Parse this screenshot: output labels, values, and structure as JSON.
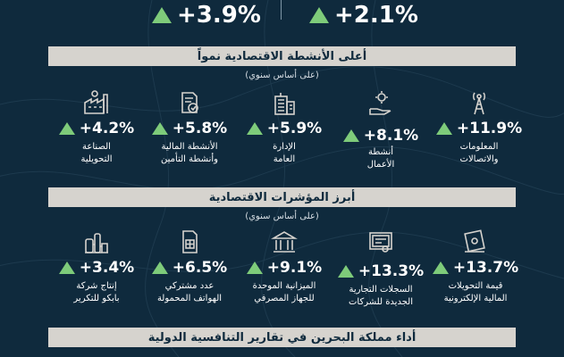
{
  "top_stats": [
    {
      "value": "+2.1%",
      "trend_icon": "up-triangle-icon"
    },
    {
      "value": "+3.9%",
      "trend_icon": "up-triangle-icon"
    }
  ],
  "section1": {
    "title": "أعلى الأنشطة الاقتصادية نمواً",
    "note": "(على أساس سنوي)",
    "items": [
      {
        "value": "+11.9%",
        "label_line1": "المعلومات",
        "label_line2": "والاتصالات",
        "icon": "telecom-tower-icon"
      },
      {
        "value": "+8.1%",
        "label_line1": "أنشطة",
        "label_line2": "الأعمال",
        "icon": "hand-gear-icon"
      },
      {
        "value": "+5.9%",
        "label_line1": "الإدارة",
        "label_line2": "العامة",
        "icon": "government-building-icon"
      },
      {
        "value": "+5.8%",
        "label_line1": "الأنشطة المالية",
        "label_line2": "وأنشطة التأمين",
        "icon": "insurance-document-icon"
      },
      {
        "value": "+4.2%",
        "label_line1": "الصناعة",
        "label_line2": "التحويلية",
        "icon": "factory-icon"
      }
    ]
  },
  "section2": {
    "title": "أبرز المؤشرات الاقتصادية",
    "note": "(على أساس سنوي)",
    "items": [
      {
        "value": "+13.7%",
        "label_line1": "قيمة التحويلات",
        "label_line2": "المالية الإلكترونية",
        "icon": "money-transfer-icon"
      },
      {
        "value": "+13.3%",
        "label_line1": "السجلات التجارية",
        "label_line2": "الجديدة للشركات",
        "icon": "certificate-icon"
      },
      {
        "value": "+9.1%",
        "label_line1": "الميزانية الموحدة",
        "label_line2": "للجهاز المصرفي",
        "icon": "bank-icon"
      },
      {
        "value": "+6.5%",
        "label_line1": "عدد مشتركي",
        "label_line2": "الهواتف المحمولة",
        "icon": "sim-card-icon"
      },
      {
        "value": "+3.4%",
        "label_line1": "إنتاج شركة",
        "label_line2": "بابكو للتكرير",
        "icon": "refinery-icon"
      }
    ]
  },
  "section3": {
    "title": "أداء مملكة البحرين في تقارير التنافسية الدولية"
  },
  "colors": {
    "background": "#0f2a3d",
    "banner": "#d6d3ce",
    "accent_green": "#7ecb7a"
  }
}
